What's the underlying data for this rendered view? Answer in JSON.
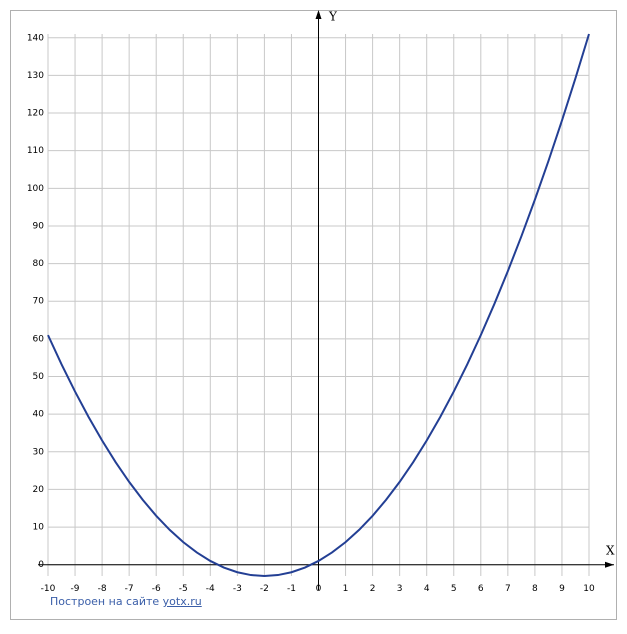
{
  "chart_data": {
    "type": "line",
    "x_label": "X",
    "y_label": "Y",
    "x": [
      -10,
      -9.5,
      -9,
      -8.5,
      -8,
      -7.5,
      -7,
      -6.5,
      -6,
      -5.5,
      -5,
      -4.5,
      -4,
      -3.5,
      -3,
      -2.5,
      -2,
      -1.5,
      -1,
      -0.5,
      0,
      0.5,
      1,
      1.5,
      2,
      2.5,
      3,
      3.5,
      4,
      4.5,
      5,
      5.5,
      6,
      6.5,
      7,
      7.5,
      8,
      8.5,
      9,
      9.5,
      10
    ],
    "series": [
      {
        "color": "#233f94",
        "values": [
          61,
          53.25,
          46,
          39.25,
          33,
          27.25,
          22,
          17.25,
          13,
          9.25,
          6,
          3.25,
          1,
          -0.75,
          -2,
          -2.75,
          -3,
          -2.75,
          -2,
          -0.75,
          1,
          3.25,
          6,
          9.25,
          13,
          17.25,
          22,
          27.25,
          33,
          39.25,
          46,
          53.25,
          61,
          69.25,
          78,
          87.25,
          97,
          107.25,
          118,
          129.25,
          141
        ]
      }
    ],
    "xlim": [
      -10,
      10
    ],
    "ylim": [
      -3,
      141
    ],
    "xticks": [
      -10,
      -9,
      -8,
      -7,
      -6,
      -5,
      -4,
      -3,
      -2,
      -1,
      0,
      1,
      2,
      3,
      4,
      5,
      6,
      7,
      8,
      9,
      10
    ],
    "yticks": [
      0,
      10,
      20,
      30,
      40,
      50,
      60,
      70,
      80,
      90,
      100,
      110,
      120,
      130,
      140
    ],
    "grid": true
  },
  "footer": {
    "text": "Построен на сайте",
    "link": "yotx.ru"
  }
}
